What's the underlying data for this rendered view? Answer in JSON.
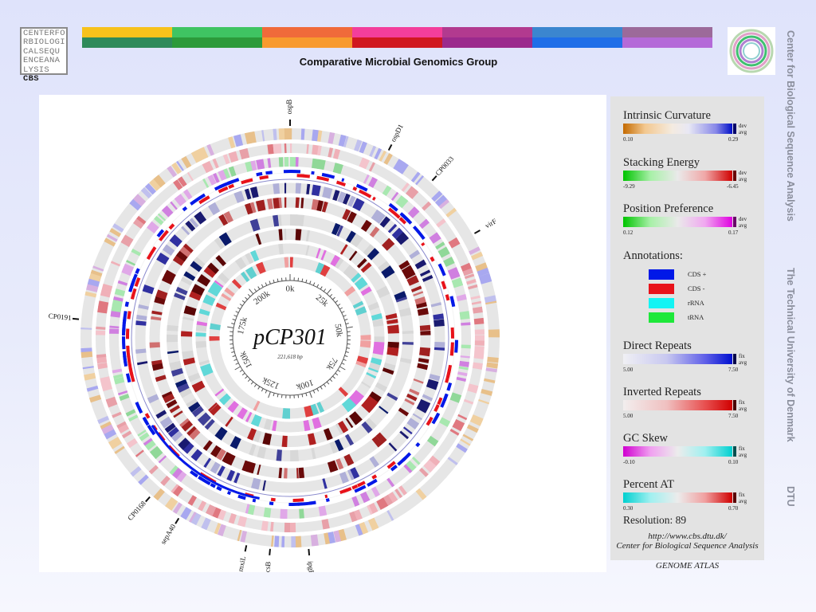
{
  "header": {
    "logo_lines": [
      "CENTERFO",
      "RBIOLOGI",
      "CALSEQU",
      "ENCEANA"
    ],
    "logo_last_prefix": "LYSIS ",
    "logo_last_suffix": "CBS",
    "title": "Comparative Microbial Genomics Group",
    "stripe_colors_top": [
      "#f7c21b",
      "#3fc462",
      "#f06a3a",
      "#f33e9b",
      "#b23a8f",
      "#3b86cf",
      "#9c6a9a"
    ],
    "stripe_colors_bottom": [
      "#2e8a5a",
      "#2c9a3a",
      "#f89a2e",
      "#d01820",
      "#9b2a8d",
      "#1f6ee8",
      "#b46ad8"
    ]
  },
  "side_text": {
    "line1": "Center for Biological Sequence Analysis",
    "line2": "The Technical University of Denmark",
    "line3": "DTU"
  },
  "atlas": {
    "name": "pCP301",
    "length_label": "221,618 bp",
    "scale_labels": [
      "0k",
      "25k",
      "50k",
      "75k",
      "100k",
      "125k",
      "150k",
      "175k",
      "200k"
    ],
    "genome_size": 221618,
    "genes": [
      {
        "name": "ospB",
        "pos": 0.0
      },
      {
        "name": "ospD1",
        "pos": 0.077
      },
      {
        "name": "CP0033",
        "pos": 0.117
      },
      {
        "name": "virF",
        "pos": 0.168
      },
      {
        "name": "CP0191",
        "pos": 0.764
      },
      {
        "name": "CP0168",
        "pos": 0.615
      },
      {
        "name": "sepA40",
        "pos": 0.588
      },
      {
        "name": "mxiL",
        "pos": 0.533
      },
      {
        "name": "icsB",
        "pos": 0.515
      },
      {
        "name": "ipgB",
        "pos": 0.486
      }
    ]
  },
  "legend": {
    "intrinsic": {
      "title": "Intrinsic Curvature",
      "min": "0.10",
      "max": "0.29",
      "top": "dev",
      "bottom": "avg"
    },
    "stacking": {
      "title": "Stacking Energy",
      "min": "-9.29",
      "max": "-6.45",
      "top": "dev",
      "bottom": "avg"
    },
    "position": {
      "title": "Position Preference",
      "min": "0.12",
      "max": "0.17",
      "top": "dev",
      "bottom": "avg"
    },
    "annotations": {
      "title": "Annotations:",
      "items": [
        {
          "label": "CDS +",
          "color": "#0018e8"
        },
        {
          "label": "CDS -",
          "color": "#e8121a"
        },
        {
          "label": "rRNA",
          "color": "#12f4f4"
        },
        {
          "label": "tRNA",
          "color": "#1ee83a"
        }
      ]
    },
    "direct": {
      "title": "Direct Repeats",
      "min": "5.00",
      "max": "7.50",
      "top": "fix",
      "bottom": "avg"
    },
    "inverted": {
      "title": "Inverted Repeats",
      "min": "5.00",
      "max": "7.50",
      "top": "fix",
      "bottom": "avg"
    },
    "gcskew": {
      "title": "GC Skew",
      "min": "-0.10",
      "max": "0.10",
      "top": "fix",
      "bottom": "avg"
    },
    "percentat": {
      "title": "Percent AT",
      "min": "0.30",
      "max": "0.70",
      "top": "fix",
      "bottom": "avg"
    },
    "resolution": "Resolution: 89",
    "url": "http://www.cbs.dtu.dk/",
    "center": "Center for Biological Sequence Analysis"
  },
  "footer_label": "GENOME ATLAS"
}
